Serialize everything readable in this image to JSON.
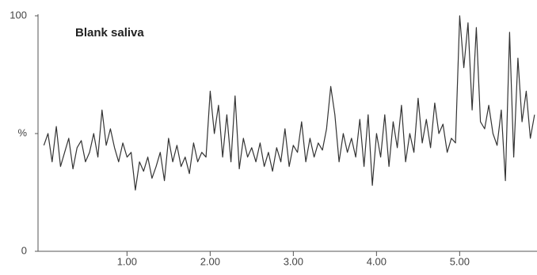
{
  "chart_data": {
    "type": "line",
    "title": "Blank saliva",
    "x": [
      0,
      0.05,
      0.1,
      0.15,
      0.2,
      0.25,
      0.3,
      0.35,
      0.4,
      0.45,
      0.5,
      0.55,
      0.6,
      0.65,
      0.7,
      0.75,
      0.8,
      0.85,
      0.9,
      0.95,
      1.0,
      1.05,
      1.1,
      1.15,
      1.2,
      1.25,
      1.3,
      1.35,
      1.4,
      1.45,
      1.5,
      1.55,
      1.6,
      1.65,
      1.7,
      1.75,
      1.8,
      1.85,
      1.9,
      1.95,
      2.0,
      2.05,
      2.1,
      2.15,
      2.2,
      2.25,
      2.3,
      2.35,
      2.4,
      2.45,
      2.5,
      2.55,
      2.6,
      2.65,
      2.7,
      2.75,
      2.8,
      2.85,
      2.9,
      2.95,
      3.0,
      3.05,
      3.1,
      3.15,
      3.2,
      3.25,
      3.3,
      3.35,
      3.4,
      3.45,
      3.5,
      3.55,
      3.6,
      3.65,
      3.7,
      3.75,
      3.8,
      3.85,
      3.9,
      3.95,
      4.0,
      4.05,
      4.1,
      4.15,
      4.2,
      4.25,
      4.3,
      4.35,
      4.4,
      4.45,
      4.5,
      4.55,
      4.6,
      4.65,
      4.7,
      4.75,
      4.8,
      4.85,
      4.9,
      4.95,
      5.0,
      5.05,
      5.1,
      5.15,
      5.2,
      5.25,
      5.3,
      5.35,
      5.4,
      5.45,
      5.5,
      5.55,
      5.6,
      5.65,
      5.7,
      5.75,
      5.8,
      5.85,
      5.9
    ],
    "series": [
      {
        "color": "#333333",
        "values": [
          45,
          50,
          38,
          53,
          36,
          42,
          48,
          35,
          44,
          47,
          38,
          42,
          50,
          40,
          60,
          45,
          52,
          44,
          38,
          46,
          40,
          42,
          26,
          38,
          34,
          40,
          31,
          36,
          42,
          30,
          48,
          38,
          45,
          36,
          40,
          33,
          46,
          38,
          42,
          40,
          68,
          50,
          62,
          40,
          58,
          38,
          66,
          35,
          48,
          40,
          44,
          38,
          46,
          36,
          42,
          34,
          44,
          38,
          52,
          36,
          45,
          42,
          55,
          38,
          48,
          40,
          46,
          43,
          52,
          70,
          58,
          38,
          50,
          42,
          48,
          40,
          56,
          36,
          58,
          28,
          50,
          40,
          58,
          36,
          55,
          44,
          62,
          38,
          50,
          42,
          65,
          46,
          56,
          44,
          63,
          50,
          54,
          42,
          48,
          46,
          100,
          78,
          97,
          60,
          95,
          55,
          52,
          62,
          50,
          45,
          60,
          30,
          93,
          40,
          82,
          55,
          68,
          48,
          58
        ]
      }
    ],
    "xlim": [
      -0.07,
      5.93
    ],
    "ylim": [
      0,
      100
    ],
    "xticks": [
      {
        "value": 1,
        "label": "1.00"
      },
      {
        "value": 2,
        "label": "2.00"
      },
      {
        "value": 3,
        "label": "3.00"
      },
      {
        "value": 4,
        "label": "4.00"
      },
      {
        "value": 5,
        "label": "5.00"
      }
    ],
    "yticks": [
      0,
      {
        "value": 50,
        "label": "%"
      },
      100
    ]
  }
}
